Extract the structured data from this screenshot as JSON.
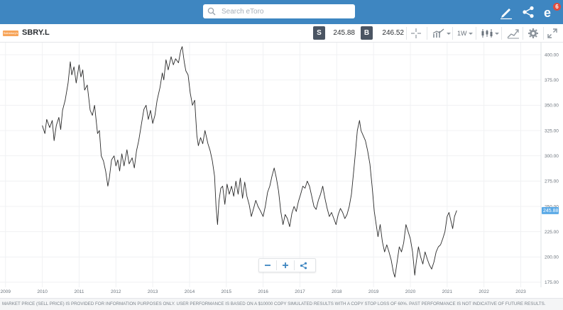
{
  "search": {
    "placeholder": "Search eToro"
  },
  "topbar": {
    "notification_count": "6"
  },
  "instrument": {
    "logo_text": "Sainsbury's",
    "symbol": "SBRY.L",
    "sell_label": "S",
    "sell_price": "245.88",
    "buy_label": "B",
    "buy_price": "246.52",
    "interval": "1W"
  },
  "colors": {
    "topbar": "#3e86c1",
    "line": "#2b2b2b",
    "price_badge": "#5aa9e6",
    "logo": "#f7a55a"
  },
  "icons": [
    "search-icon",
    "pencil-icon",
    "share-icon",
    "etoro-notifications-icon",
    "crosshair-icon",
    "chart-type-icon",
    "candlestick-icon",
    "drawing-tools-icon",
    "settings-gear-icon",
    "fullscreen-icon",
    "zoom-out-icon",
    "zoom-in-icon",
    "chart-share-icon"
  ],
  "chart_data": {
    "type": "line",
    "title": "",
    "xlabel": "",
    "ylabel": "",
    "x_ticks": [
      "2009",
      "2010",
      "2011",
      "2012",
      "2013",
      "2014",
      "2015",
      "2016",
      "2017",
      "2018",
      "2019",
      "2020",
      "2021",
      "2022",
      "2023"
    ],
    "y_ticks": [
      "400.00",
      "375.00",
      "350.00",
      "325.00",
      "300.00",
      "275.00",
      "250.00",
      "225.00",
      "200.00",
      "175.00"
    ],
    "ylim": [
      170,
      412
    ],
    "xlim": [
      2008.85,
      2023.55
    ],
    "current_price_label": "245.88",
    "current_price": 245.88,
    "series": [
      {
        "points": [
          [
            2010.0,
            330
          ],
          [
            2010.07,
            322
          ],
          [
            2010.12,
            336
          ],
          [
            2010.2,
            328
          ],
          [
            2010.27,
            335
          ],
          [
            2010.32,
            315
          ],
          [
            2010.38,
            330
          ],
          [
            2010.45,
            338
          ],
          [
            2010.5,
            326
          ],
          [
            2010.55,
            345
          ],
          [
            2010.62,
            355
          ],
          [
            2010.7,
            372
          ],
          [
            2010.76,
            393
          ],
          [
            2010.8,
            380
          ],
          [
            2010.86,
            388
          ],
          [
            2010.92,
            372
          ],
          [
            2011.0,
            390
          ],
          [
            2011.05,
            378
          ],
          [
            2011.1,
            385
          ],
          [
            2011.15,
            365
          ],
          [
            2011.22,
            370
          ],
          [
            2011.3,
            345
          ],
          [
            2011.36,
            340
          ],
          [
            2011.42,
            350
          ],
          [
            2011.5,
            322
          ],
          [
            2011.55,
            325
          ],
          [
            2011.6,
            300
          ],
          [
            2011.66,
            295
          ],
          [
            2011.72,
            285
          ],
          [
            2011.78,
            270
          ],
          [
            2011.82,
            278
          ],
          [
            2011.88,
            296
          ],
          [
            2011.95,
            300
          ],
          [
            2012.0,
            290
          ],
          [
            2012.05,
            296
          ],
          [
            2012.1,
            285
          ],
          [
            2012.16,
            302
          ],
          [
            2012.22,
            290
          ],
          [
            2012.3,
            306
          ],
          [
            2012.36,
            292
          ],
          [
            2012.44,
            298
          ],
          [
            2012.5,
            288
          ],
          [
            2012.56,
            305
          ],
          [
            2012.62,
            315
          ],
          [
            2012.7,
            333
          ],
          [
            2012.76,
            346
          ],
          [
            2012.82,
            350
          ],
          [
            2012.88,
            336
          ],
          [
            2012.94,
            345
          ],
          [
            2013.0,
            332
          ],
          [
            2013.06,
            340
          ],
          [
            2013.12,
            355
          ],
          [
            2013.2,
            368
          ],
          [
            2013.26,
            382
          ],
          [
            2013.3,
            375
          ],
          [
            2013.36,
            395
          ],
          [
            2013.42,
            385
          ],
          [
            2013.5,
            398
          ],
          [
            2013.56,
            390
          ],
          [
            2013.62,
            396
          ],
          [
            2013.7,
            392
          ],
          [
            2013.76,
            404
          ],
          [
            2013.8,
            408
          ],
          [
            2013.86,
            392
          ],
          [
            2013.9,
            384
          ],
          [
            2013.96,
            380
          ],
          [
            2014.02,
            362
          ],
          [
            2014.08,
            350
          ],
          [
            2014.14,
            355
          ],
          [
            2014.2,
            320
          ],
          [
            2014.24,
            310
          ],
          [
            2014.3,
            318
          ],
          [
            2014.36,
            312
          ],
          [
            2014.42,
            325
          ],
          [
            2014.5,
            312
          ],
          [
            2014.56,
            305
          ],
          [
            2014.62,
            295
          ],
          [
            2014.68,
            280
          ],
          [
            2014.72,
            250
          ],
          [
            2014.76,
            232
          ],
          [
            2014.8,
            255
          ],
          [
            2014.85,
            268
          ],
          [
            2014.9,
            270
          ],
          [
            2014.96,
            252
          ],
          [
            2015.02,
            272
          ],
          [
            2015.08,
            262
          ],
          [
            2015.14,
            270
          ],
          [
            2015.2,
            260
          ],
          [
            2015.26,
            275
          ],
          [
            2015.32,
            262
          ],
          [
            2015.38,
            278
          ],
          [
            2015.44,
            258
          ],
          [
            2015.5,
            274
          ],
          [
            2015.56,
            260
          ],
          [
            2015.62,
            252
          ],
          [
            2015.68,
            240
          ],
          [
            2015.74,
            248
          ],
          [
            2015.8,
            256
          ],
          [
            2015.86,
            250
          ],
          [
            2015.92,
            246
          ],
          [
            2016.0,
            240
          ],
          [
            2016.06,
            250
          ],
          [
            2016.12,
            264
          ],
          [
            2016.18,
            270
          ],
          [
            2016.24,
            280
          ],
          [
            2016.3,
            288
          ],
          [
            2016.36,
            278
          ],
          [
            2016.42,
            265
          ],
          [
            2016.48,
            245
          ],
          [
            2016.54,
            232
          ],
          [
            2016.6,
            242
          ],
          [
            2016.66,
            238
          ],
          [
            2016.72,
            230
          ],
          [
            2016.78,
            243
          ],
          [
            2016.84,
            250
          ],
          [
            2016.9,
            245
          ],
          [
            2016.96,
            255
          ],
          [
            2017.02,
            262
          ],
          [
            2017.08,
            270
          ],
          [
            2017.14,
            268
          ],
          [
            2017.2,
            275
          ],
          [
            2017.26,
            270
          ],
          [
            2017.32,
            260
          ],
          [
            2017.38,
            250
          ],
          [
            2017.44,
            247
          ],
          [
            2017.5,
            256
          ],
          [
            2017.56,
            262
          ],
          [
            2017.62,
            270
          ],
          [
            2017.68,
            258
          ],
          [
            2017.74,
            248
          ],
          [
            2017.8,
            240
          ],
          [
            2017.86,
            244
          ],
          [
            2017.92,
            238
          ],
          [
            2017.98,
            232
          ],
          [
            2018.04,
            242
          ],
          [
            2018.1,
            248
          ],
          [
            2018.16,
            244
          ],
          [
            2018.22,
            238
          ],
          [
            2018.28,
            242
          ],
          [
            2018.34,
            250
          ],
          [
            2018.4,
            262
          ],
          [
            2018.46,
            285
          ],
          [
            2018.5,
            300
          ],
          [
            2018.56,
            325
          ],
          [
            2018.62,
            335
          ],
          [
            2018.66,
            325
          ],
          [
            2018.72,
            320
          ],
          [
            2018.78,
            315
          ],
          [
            2018.84,
            305
          ],
          [
            2018.9,
            292
          ],
          [
            2018.96,
            270
          ],
          [
            2019.02,
            245
          ],
          [
            2019.08,
            230
          ],
          [
            2019.12,
            220
          ],
          [
            2019.18,
            232
          ],
          [
            2019.24,
            215
          ],
          [
            2019.3,
            205
          ],
          [
            2019.36,
            212
          ],
          [
            2019.42,
            205
          ],
          [
            2019.48,
            197
          ],
          [
            2019.54,
            185
          ],
          [
            2019.58,
            180
          ],
          [
            2019.64,
            195
          ],
          [
            2019.7,
            210
          ],
          [
            2019.76,
            205
          ],
          [
            2019.82,
            214
          ],
          [
            2019.88,
            232
          ],
          [
            2019.94,
            225
          ],
          [
            2020.0,
            218
          ],
          [
            2020.06,
            205
          ],
          [
            2020.12,
            182
          ],
          [
            2020.16,
            195
          ],
          [
            2020.22,
            210
          ],
          [
            2020.28,
            200
          ],
          [
            2020.34,
            193
          ],
          [
            2020.4,
            205
          ],
          [
            2020.46,
            198
          ],
          [
            2020.52,
            192
          ],
          [
            2020.58,
            188
          ],
          [
            2020.64,
            195
          ],
          [
            2020.7,
            205
          ],
          [
            2020.76,
            210
          ],
          [
            2020.82,
            212
          ],
          [
            2020.88,
            218
          ],
          [
            2020.94,
            225
          ],
          [
            2021.0,
            240
          ],
          [
            2021.05,
            244
          ],
          [
            2021.1,
            236
          ],
          [
            2021.15,
            228
          ],
          [
            2021.2,
            240
          ],
          [
            2021.26,
            246
          ]
        ]
      }
    ]
  },
  "zoom": {
    "out_label": "−",
    "in_label": "+"
  },
  "footer": {
    "disclaimer": "MARKET PRICE (SELL PRICE) IS PROVIDED FOR INFORMATION PURPOSES ONLY. USER PERFORMANCE IS BASED ON A $10000 COPY SIMULATED RESULTS WITH A COPY STOP LOSS OF 60%. PAST PERFORMANCE IS NOT INDICATIVE OF FUTURE RESULTS."
  }
}
